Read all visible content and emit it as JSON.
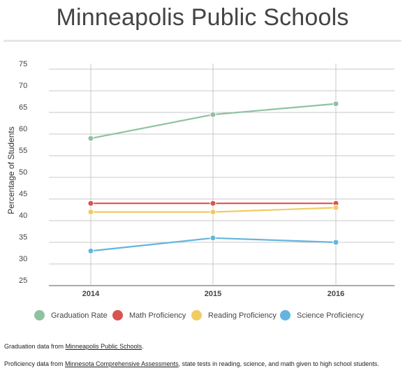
{
  "header": {
    "title": "Minneapolis Public Schools"
  },
  "chart_data": {
    "type": "line",
    "categories": [
      "2014",
      "2015",
      "2016"
    ],
    "ylabel": "Percentage of Students",
    "xlabel": "",
    "ylim": [
      25,
      75
    ],
    "yticks": [
      25,
      30,
      35,
      40,
      45,
      50,
      55,
      60,
      65,
      70,
      75
    ],
    "grid": true,
    "legend_position": "bottom",
    "series": [
      {
        "name": "Graduation Rate",
        "color": "#8fc2a1",
        "values": [
          59,
          64.5,
          67
        ]
      },
      {
        "name": "Math Proficiency",
        "color": "#d9534f",
        "values": [
          44,
          44,
          44
        ]
      },
      {
        "name": "Reading Proficiency",
        "color": "#f1cc63",
        "values": [
          42,
          42,
          43
        ]
      },
      {
        "name": "Science Proficiency",
        "color": "#64b5dd",
        "values": [
          33,
          36,
          35
        ]
      }
    ]
  },
  "notes": {
    "grad_prefix": "Graduation data from ",
    "grad_link": "Minneapolis Public Schools",
    "grad_suffix": ".",
    "prof_prefix": "Proficiency data from ",
    "prof_link": "Minnesota Comprehensive Assessments",
    "prof_suffix": ", state tests in reading, science, and math given to high school students."
  }
}
